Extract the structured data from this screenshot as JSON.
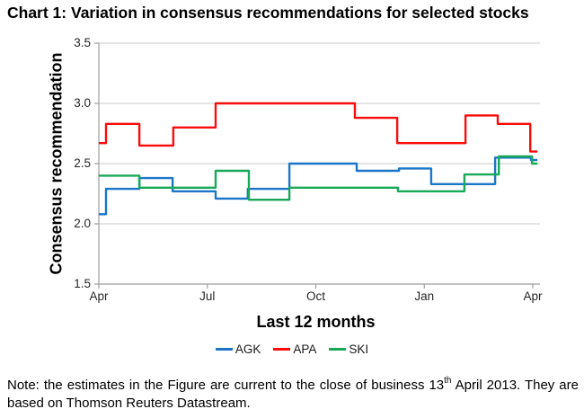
{
  "page": {
    "note": {
      "part1": "Note: the estimates in the Figure are current to the close of business 13",
      "sup": "th",
      "part2": " April 2013. They are based on Thomson Reuters Datastream."
    }
  },
  "chart_data": {
    "type": "line",
    "subtype": "step",
    "title": "Chart 1: Variation in consensus recommendations for selected stocks",
    "xlabel": "Last 12 months",
    "ylabel": "Consensus recommendation",
    "ylim": [
      1.5,
      3.5
    ],
    "yticks": [
      {
        "v": 3.5,
        "label": "3.5"
      },
      {
        "v": 3.0,
        "label": "3.0"
      },
      {
        "v": 2.5,
        "label": "2.5"
      },
      {
        "v": 2.0,
        "label": "2.0"
      },
      {
        "v": 1.5,
        "label": "1.5"
      }
    ],
    "xlim": [
      0,
      12.13
    ],
    "x_unit": "months since April 2012",
    "xticks": [
      {
        "m": 0,
        "label": "Apr"
      },
      {
        "m": 3,
        "label": "Jul"
      },
      {
        "m": 6,
        "label": "Oct"
      },
      {
        "m": 9,
        "label": "Jan"
      },
      {
        "m": 12,
        "label": "Apr"
      }
    ],
    "grid": "horizontal",
    "legend_position": "bottom",
    "colors": {
      "grid": "#c9c9c9",
      "axis": "#9e9e9e",
      "tick_text": "#262626"
    },
    "series": [
      {
        "name": "AGK",
        "color": "#1b76c8",
        "steps": [
          [
            0,
            2.08
          ],
          [
            0.2,
            2.29
          ],
          [
            1.12,
            2.38
          ],
          [
            2.04,
            2.27
          ],
          [
            3.23,
            2.21
          ],
          [
            4.12,
            2.29
          ],
          [
            5.27,
            2.5
          ],
          [
            7.13,
            2.44
          ],
          [
            8.3,
            2.46
          ],
          [
            9.19,
            2.33
          ],
          [
            10.96,
            2.55
          ],
          [
            11.95,
            2.53
          ]
        ]
      },
      {
        "name": "APA",
        "color": "#f80c0c",
        "steps": [
          [
            0,
            2.67
          ],
          [
            0.2,
            2.83
          ],
          [
            1.12,
            2.65
          ],
          [
            2.06,
            2.8
          ],
          [
            3.23,
            3.0
          ],
          [
            7.08,
            2.88
          ],
          [
            8.25,
            2.67
          ],
          [
            10.14,
            2.9
          ],
          [
            11.03,
            2.83
          ],
          [
            11.93,
            2.6
          ]
        ]
      },
      {
        "name": "SKI",
        "color": "#18a85a",
        "steps": [
          [
            0,
            2.4
          ],
          [
            1.12,
            2.3
          ],
          [
            3.23,
            2.44
          ],
          [
            4.15,
            2.2
          ],
          [
            5.27,
            2.3
          ],
          [
            8.27,
            2.27
          ],
          [
            10.11,
            2.41
          ],
          [
            11.06,
            2.56
          ],
          [
            11.98,
            2.5
          ]
        ]
      }
    ]
  }
}
